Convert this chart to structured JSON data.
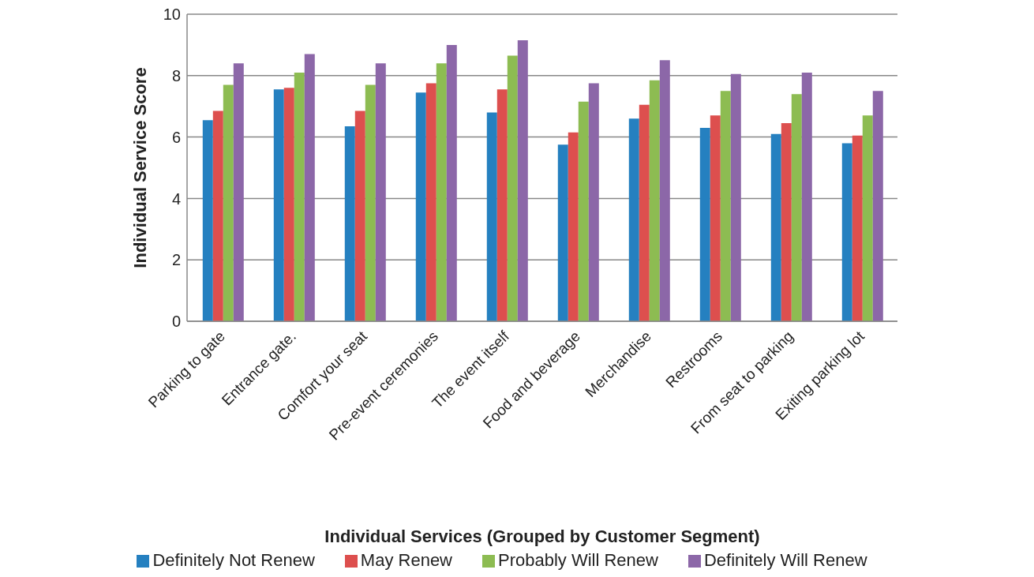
{
  "chart_data": {
    "type": "bar",
    "xlabel": "Individual Services (Grouped by Customer Segment)",
    "ylabel": "Individual Service Score",
    "categories": [
      "Parking to gate",
      "Entrance gate.",
      "Comfort your seat",
      "Pre-event ceremonies",
      "The event itself",
      "Food and beverage",
      "Merchandise",
      "Restrooms",
      "From seat to parking",
      "Exiting parking lot"
    ],
    "series": [
      {
        "name": "Definitely Not Renew",
        "color": "#2580c0",
        "values": [
          6.55,
          7.55,
          6.35,
          7.45,
          6.8,
          5.75,
          6.6,
          6.3,
          6.1,
          5.8
        ]
      },
      {
        "name": "May Renew",
        "color": "#dd4f4e",
        "values": [
          6.85,
          7.6,
          6.85,
          7.75,
          7.55,
          6.15,
          7.05,
          6.7,
          6.45,
          6.05
        ]
      },
      {
        "name": "Probably Will Renew",
        "color": "#8dbc52",
        "values": [
          7.7,
          8.1,
          7.7,
          8.4,
          8.65,
          7.15,
          7.85,
          7.5,
          7.4,
          6.7
        ]
      },
      {
        "name": "Definitely Will Renew",
        "color": "#8c67a8",
        "values": [
          8.4,
          8.7,
          8.4,
          9.0,
          9.15,
          7.75,
          8.5,
          8.05,
          8.1,
          7.5
        ]
      }
    ],
    "ylim": [
      0,
      10
    ],
    "yticks": [
      0,
      2,
      4,
      6,
      8,
      10
    ],
    "grid": "y",
    "legend": "bottom"
  }
}
